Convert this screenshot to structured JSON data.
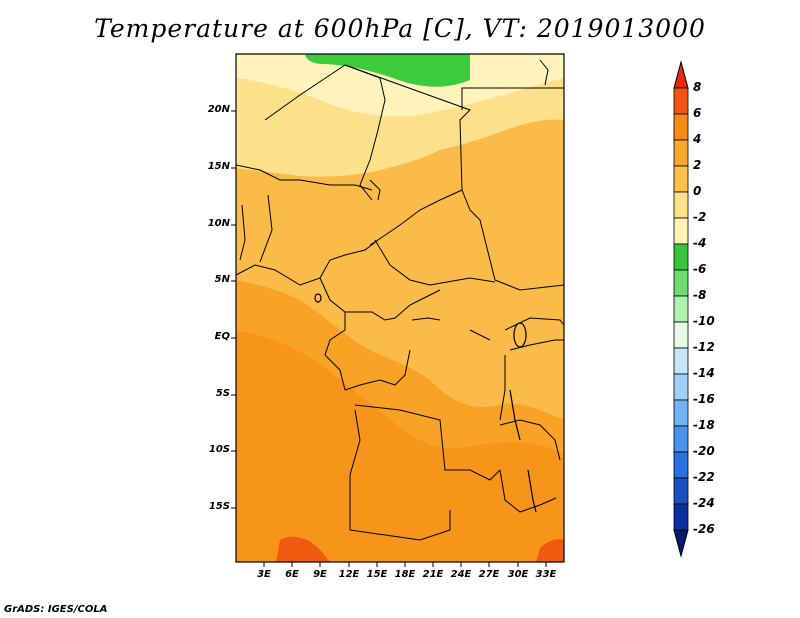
{
  "title": "Temperature at 600hPa [C], VT: 2019013000",
  "credit": "GrADS: IGES/COLA",
  "map": {
    "lat_labels": [
      "20N",
      "15N",
      "10N",
      "5N",
      "EQ",
      "5S",
      "10S",
      "15S"
    ],
    "lon_labels": [
      "3E",
      "6E",
      "9E",
      "12E",
      "15E",
      "18E",
      "21E",
      "24E",
      "27E",
      "30E",
      "33E"
    ]
  },
  "colorbar": {
    "levels": [
      "8",
      "6",
      "4",
      "2",
      "0",
      "-2",
      "-4",
      "-6",
      "-8",
      "-10",
      "-12",
      "-14",
      "-16",
      "-18",
      "-20",
      "-22",
      "-24",
      "-26"
    ],
    "colors": [
      "#e62a0a",
      "#f0560f",
      "#f58a14",
      "#f7a82a",
      "#fbc14a",
      "#fde28a",
      "#fef3b5",
      "#3bc43b",
      "#6fdc6f",
      "#b0f0b0",
      "#e6fae6",
      "#c8e6fa",
      "#a0d0f8",
      "#72b2f2",
      "#4a92ea",
      "#2a70dc",
      "#1a50c2",
      "#0a30a0",
      "#061a6e"
    ]
  }
}
